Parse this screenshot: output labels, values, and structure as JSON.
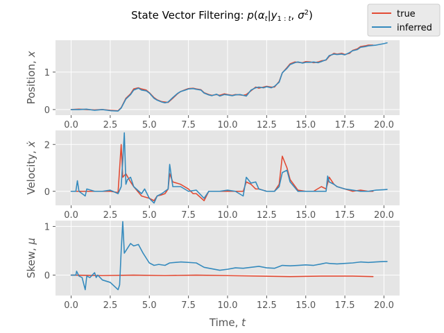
{
  "title": "State Vector Filtering: p(α_t|y_1:t, σ²)",
  "xlabel": "Time, t",
  "legend": {
    "location": "top-right"
  },
  "colors": {
    "true": "#e24a33",
    "inferred": "#348abd"
  },
  "chart_data": [
    {
      "type": "line",
      "ylabel": "Position, x",
      "xlim": [
        -1.0,
        21.0
      ],
      "ylim": [
        -0.15,
        1.85
      ],
      "xticks": [
        0.0,
        2.5,
        5.0,
        7.5,
        10.0,
        12.5,
        15.0,
        17.5,
        20.0
      ],
      "xtick_labels": [
        "0.0",
        "2.5",
        "5.0",
        "7.5",
        "10.0",
        "12.5",
        "15.0",
        "17.5",
        "20.0"
      ],
      "yticks": [
        0,
        1
      ],
      "ytick_labels": [
        "0",
        "1"
      ],
      "series": [
        {
          "name": "true",
          "x": [
            0.0,
            0.5,
            1.0,
            1.5,
            2.0,
            2.5,
            3.0,
            3.2,
            3.5,
            3.8,
            4.0,
            4.3,
            4.5,
            4.8,
            5.0,
            5.3,
            5.5,
            5.8,
            6.0,
            6.2,
            6.5,
            6.8,
            7.0,
            7.3,
            7.5,
            7.8,
            8.0,
            8.3,
            8.5,
            8.8,
            9.0,
            9.3,
            9.5,
            9.8,
            10.0,
            10.3,
            10.5,
            10.8,
            11.0,
            11.2,
            11.5,
            11.8,
            12.0,
            12.3,
            12.5,
            12.8,
            13.0,
            13.3,
            13.5,
            13.8,
            14.0,
            14.3,
            14.5,
            14.8,
            15.0,
            15.3,
            15.5,
            15.8,
            16.0,
            16.3,
            16.5,
            16.8,
            17.0,
            17.3,
            17.5,
            17.8,
            18.0,
            18.3,
            18.5,
            18.8,
            19.0,
            19.3
          ],
          "values": [
            0.0,
            0.01,
            0.0,
            -0.01,
            0.0,
            -0.02,
            -0.03,
            0.05,
            0.3,
            0.42,
            0.55,
            0.58,
            0.55,
            0.52,
            0.45,
            0.32,
            0.26,
            0.21,
            0.2,
            0.19,
            0.3,
            0.42,
            0.48,
            0.53,
            0.56,
            0.57,
            0.55,
            0.53,
            0.45,
            0.4,
            0.38,
            0.4,
            0.38,
            0.42,
            0.4,
            0.38,
            0.4,
            0.39,
            0.38,
            0.4,
            0.5,
            0.6,
            0.57,
            0.6,
            0.62,
            0.6,
            0.6,
            0.75,
            0.98,
            1.12,
            1.22,
            1.27,
            1.26,
            1.25,
            1.28,
            1.27,
            1.25,
            1.27,
            1.3,
            1.32,
            1.42,
            1.5,
            1.48,
            1.5,
            1.47,
            1.5,
            1.58,
            1.62,
            1.68,
            1.7,
            1.72,
            1.72
          ]
        },
        {
          "name": "inferred",
          "x": [
            0.0,
            0.5,
            1.0,
            1.5,
            2.0,
            2.5,
            3.0,
            3.2,
            3.5,
            3.8,
            4.0,
            4.3,
            4.5,
            4.8,
            5.0,
            5.3,
            5.5,
            5.8,
            6.0,
            6.2,
            6.5,
            6.8,
            7.0,
            7.3,
            7.5,
            7.8,
            8.0,
            8.3,
            8.5,
            8.8,
            9.0,
            9.3,
            9.5,
            9.8,
            10.0,
            10.3,
            10.5,
            10.8,
            11.0,
            11.2,
            11.5,
            11.8,
            12.0,
            12.3,
            12.5,
            12.8,
            13.0,
            13.3,
            13.5,
            13.8,
            14.0,
            14.3,
            14.5,
            14.8,
            15.0,
            15.3,
            15.5,
            15.8,
            16.0,
            16.3,
            16.5,
            16.8,
            17.0,
            17.3,
            17.5,
            17.8,
            18.0,
            18.3,
            18.5,
            18.8,
            19.0,
            19.5,
            20.0,
            20.2
          ],
          "values": [
            0.0,
            0.0,
            0.01,
            -0.02,
            0.0,
            -0.03,
            -0.04,
            0.04,
            0.28,
            0.4,
            0.52,
            0.57,
            0.52,
            0.5,
            0.44,
            0.3,
            0.25,
            0.2,
            0.18,
            0.2,
            0.32,
            0.43,
            0.48,
            0.52,
            0.55,
            0.56,
            0.54,
            0.52,
            0.44,
            0.39,
            0.37,
            0.41,
            0.36,
            0.4,
            0.39,
            0.37,
            0.39,
            0.4,
            0.38,
            0.36,
            0.52,
            0.58,
            0.6,
            0.58,
            0.61,
            0.58,
            0.62,
            0.73,
            0.98,
            1.1,
            1.2,
            1.25,
            1.27,
            1.24,
            1.26,
            1.26,
            1.27,
            1.25,
            1.28,
            1.33,
            1.44,
            1.48,
            1.47,
            1.48,
            1.46,
            1.52,
            1.57,
            1.6,
            1.66,
            1.68,
            1.7,
            1.72,
            1.76,
            1.78
          ]
        }
      ]
    },
    {
      "type": "line",
      "ylabel": "Velocity, ẋ",
      "xlim": [
        -1.0,
        21.0
      ],
      "ylim": [
        -0.6,
        2.6
      ],
      "xticks": [
        0.0,
        2.5,
        5.0,
        7.5,
        10.0,
        12.5,
        15.0,
        17.5,
        20.0
      ],
      "xtick_labels": [
        "0.0",
        "2.5",
        "5.0",
        "7.5",
        "10.0",
        "12.5",
        "15.0",
        "17.5",
        "20.0"
      ],
      "yticks": [
        0,
        2
      ],
      "ytick_labels": [
        "0",
        "2"
      ],
      "series": [
        {
          "name": "true",
          "x": [
            0.0,
            0.5,
            1.0,
            1.5,
            2.0,
            2.5,
            3.0,
            3.2,
            3.3,
            3.5,
            3.8,
            4.0,
            4.5,
            5.0,
            5.3,
            5.5,
            5.8,
            6.0,
            6.2,
            6.3,
            6.5,
            7.0,
            7.5,
            7.8,
            8.0,
            8.5,
            8.8,
            9.0,
            9.5,
            10.0,
            10.5,
            11.0,
            11.2,
            11.5,
            11.8,
            12.0,
            12.5,
            13.0,
            13.3,
            13.5,
            13.8,
            14.0,
            14.5,
            15.0,
            15.5,
            16.0,
            16.3,
            16.5,
            16.8,
            17.0,
            17.5,
            18.0,
            18.5,
            19.0,
            19.3
          ],
          "values": [
            0.0,
            0.0,
            0.0,
            0.0,
            0.0,
            0.0,
            -0.05,
            2.0,
            0.6,
            0.75,
            0.4,
            0.2,
            -0.2,
            -0.3,
            -0.4,
            -0.2,
            -0.15,
            -0.1,
            0.1,
            0.75,
            0.4,
            0.3,
            0.1,
            -0.1,
            -0.1,
            -0.4,
            0.0,
            0.0,
            0.0,
            0.0,
            0.0,
            0.0,
            0.4,
            0.3,
            0.1,
            0.1,
            0.0,
            0.0,
            0.3,
            1.5,
            1.0,
            0.5,
            0.05,
            0.0,
            0.0,
            0.2,
            0.1,
            0.6,
            0.3,
            0.2,
            0.1,
            0.0,
            0.05,
            0.0,
            0.0
          ]
        },
        {
          "name": "inferred",
          "x": [
            0.0,
            0.3,
            0.4,
            0.5,
            0.9,
            1.0,
            1.5,
            2.0,
            2.5,
            3.0,
            3.2,
            3.3,
            3.4,
            3.5,
            3.6,
            3.8,
            4.0,
            4.5,
            4.7,
            5.0,
            5.3,
            5.5,
            5.8,
            6.0,
            6.2,
            6.3,
            6.5,
            7.0,
            7.5,
            8.0,
            8.5,
            8.8,
            9.0,
            9.5,
            10.0,
            10.5,
            11.0,
            11.2,
            11.5,
            11.8,
            12.0,
            12.5,
            13.0,
            13.3,
            13.5,
            13.8,
            14.0,
            14.5,
            15.0,
            15.5,
            16.0,
            16.3,
            16.4,
            16.5,
            16.8,
            17.0,
            17.5,
            18.0,
            18.5,
            19.0,
            19.5,
            20.0,
            20.2
          ],
          "values": [
            0.0,
            0.0,
            0.45,
            0.0,
            -0.2,
            0.1,
            0.0,
            0.0,
            0.05,
            -0.1,
            0.2,
            1.3,
            2.5,
            0.3,
            0.5,
            0.6,
            0.2,
            -0.1,
            0.1,
            -0.3,
            -0.5,
            -0.2,
            -0.1,
            0.0,
            0.1,
            1.15,
            0.2,
            0.2,
            0.0,
            0.05,
            -0.3,
            0.0,
            0.0,
            0.0,
            0.05,
            0.0,
            -0.2,
            0.6,
            0.35,
            0.4,
            0.1,
            0.0,
            0.0,
            0.2,
            0.8,
            0.9,
            0.4,
            0.0,
            0.0,
            0.0,
            0.0,
            0.0,
            0.65,
            0.4,
            0.3,
            0.2,
            0.1,
            0.05,
            0.0,
            0.0,
            0.05,
            0.07,
            0.08
          ]
        }
      ]
    },
    {
      "type": "line",
      "ylabel": "Skew, μ",
      "xlim": [
        -1.0,
        21.0
      ],
      "ylim": [
        -0.42,
        1.12
      ],
      "xticks": [
        0.0,
        2.5,
        5.0,
        7.5,
        10.0,
        12.5,
        15.0,
        17.5,
        20.0
      ],
      "xtick_labels": [
        "0.0",
        "2.5",
        "5.0",
        "7.5",
        "10.0",
        "12.5",
        "15.0",
        "17.5",
        "20.0"
      ],
      "yticks": [
        0,
        1
      ],
      "ytick_labels": [
        "0",
        "1"
      ],
      "series": [
        {
          "name": "true",
          "x": [
            0.0,
            2.0,
            4.0,
            6.0,
            8.0,
            10.0,
            12.0,
            14.0,
            16.0,
            18.0,
            19.3
          ],
          "values": [
            0.0,
            -0.01,
            0.0,
            -0.01,
            0.0,
            -0.01,
            -0.02,
            -0.03,
            -0.02,
            -0.02,
            -0.03
          ]
        },
        {
          "name": "inferred",
          "x": [
            0.0,
            0.3,
            0.35,
            0.5,
            0.7,
            0.9,
            1.0,
            1.2,
            1.5,
            1.6,
            1.7,
            2.0,
            2.5,
            3.0,
            3.1,
            3.2,
            3.3,
            3.4,
            3.5,
            3.7,
            3.8,
            4.0,
            4.3,
            4.6,
            4.8,
            5.0,
            5.3,
            5.6,
            6.0,
            6.3,
            7.0,
            8.0,
            8.5,
            9.0,
            9.5,
            10.0,
            10.5,
            11.0,
            11.5,
            12.0,
            12.5,
            13.0,
            13.5,
            14.0,
            14.5,
            15.0,
            15.5,
            16.0,
            16.3,
            16.5,
            17.0,
            17.5,
            18.0,
            18.5,
            19.0,
            19.5,
            20.0,
            20.2
          ],
          "values": [
            0.0,
            0.0,
            0.08,
            -0.02,
            -0.05,
            -0.3,
            -0.02,
            -0.05,
            0.05,
            -0.05,
            0.0,
            -0.1,
            -0.15,
            -0.3,
            -0.2,
            0.5,
            1.1,
            0.45,
            0.5,
            0.6,
            0.65,
            0.6,
            0.63,
            0.45,
            0.35,
            0.25,
            0.2,
            0.22,
            0.2,
            0.25,
            0.27,
            0.25,
            0.16,
            0.13,
            0.1,
            0.12,
            0.15,
            0.14,
            0.16,
            0.18,
            0.15,
            0.14,
            0.2,
            0.19,
            0.2,
            0.21,
            0.2,
            0.23,
            0.25,
            0.24,
            0.23,
            0.24,
            0.25,
            0.27,
            0.26,
            0.27,
            0.28,
            0.28
          ]
        }
      ]
    }
  ]
}
